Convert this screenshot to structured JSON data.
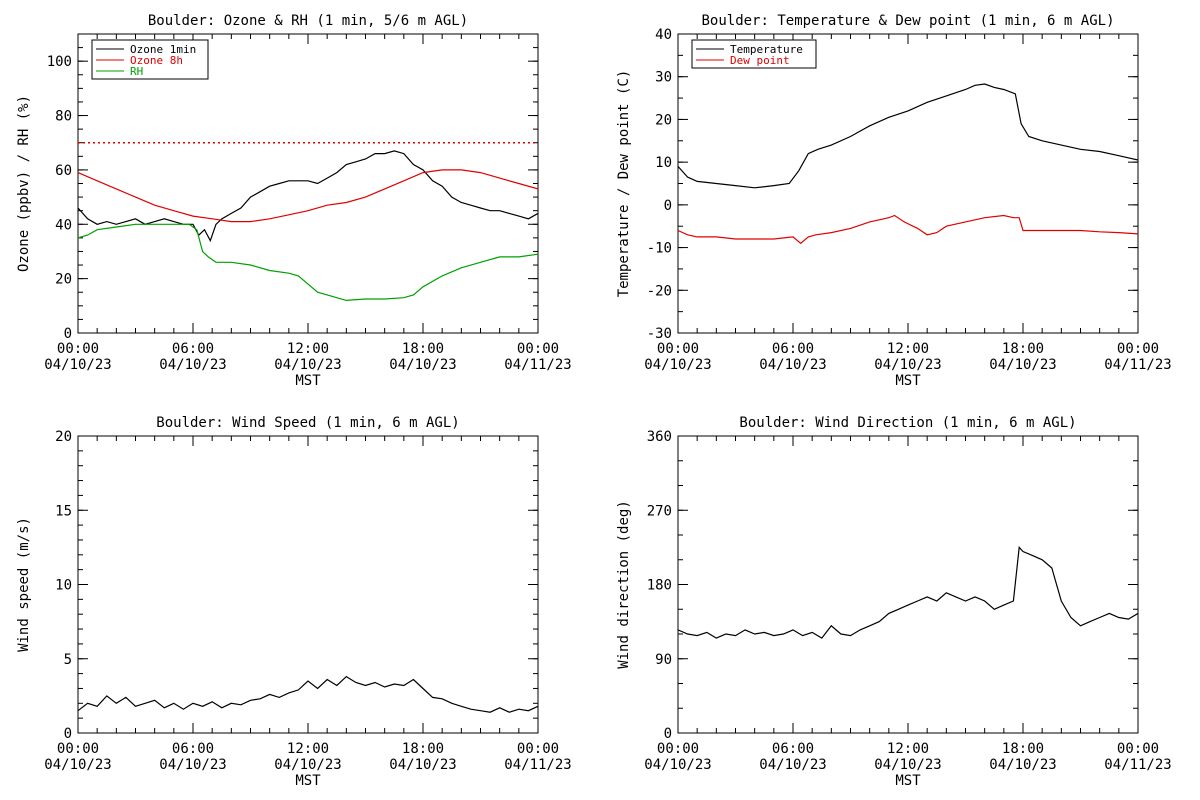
{
  "x_ticks": [
    {
      "time": "00:00",
      "date": "04/10/23"
    },
    {
      "time": "06:00",
      "date": "04/10/23"
    },
    {
      "time": "12:00",
      "date": "04/10/23"
    },
    {
      "time": "18:00",
      "date": "04/10/23"
    },
    {
      "time": "00:00",
      "date": "04/11/23"
    }
  ],
  "xlabel": "MST",
  "chart_data": [
    {
      "type": "line",
      "title": "Boulder: Ozone & RH (1 min, 5/6 m AGL)",
      "xlabel": "MST",
      "ylabel": "Ozone (ppbv) / RH (%)",
      "xlim_hours": [
        0,
        24
      ],
      "ylim": [
        0,
        110
      ],
      "yticks": [
        0,
        20,
        40,
        60,
        80,
        100
      ],
      "legend_position": "top-left",
      "reference_line": {
        "value": 70,
        "color": "#e00000",
        "style": "dotted"
      },
      "series": [
        {
          "name": "Ozone 1min",
          "color": "#000000",
          "x": [
            0,
            0.5,
            1,
            1.5,
            2,
            2.5,
            3,
            3.5,
            4,
            4.5,
            5,
            5.5,
            6,
            6.3,
            6.6,
            6.9,
            7.2,
            7.5,
            8,
            8.5,
            9,
            9.5,
            10,
            10.5,
            11,
            11.5,
            12,
            12.5,
            13,
            13.5,
            14,
            14.5,
            15,
            15.5,
            16,
            16.5,
            17,
            17.5,
            18,
            18.5,
            19,
            19.5,
            20,
            20.5,
            21,
            21.5,
            22,
            22.5,
            23,
            23.5,
            24
          ],
          "y": [
            46,
            42,
            40,
            41,
            40,
            41,
            42,
            40,
            41,
            42,
            41,
            40,
            40,
            36,
            38,
            34,
            40,
            42,
            44,
            46,
            50,
            52,
            54,
            55,
            56,
            56,
            56,
            55,
            57,
            59,
            62,
            63,
            64,
            66,
            66,
            67,
            66,
            62,
            60,
            56,
            54,
            50,
            48,
            47,
            46,
            45,
            45,
            44,
            43,
            42,
            44
          ]
        },
        {
          "name": "Ozone 8h",
          "color": "#e00000",
          "x": [
            0,
            1,
            2,
            3,
            4,
            5,
            6,
            7,
            8,
            9,
            10,
            11,
            12,
            13,
            14,
            15,
            16,
            17,
            18,
            19,
            20,
            21,
            22,
            23,
            24
          ],
          "y": [
            59,
            56,
            53,
            50,
            47,
            45,
            43,
            42,
            41,
            41,
            42,
            43.5,
            45,
            47,
            48,
            50,
            53,
            56,
            59,
            60,
            60,
            59,
            57,
            55,
            53
          ]
        },
        {
          "name": "RH",
          "color": "#00a000",
          "x": [
            0,
            0.5,
            1,
            2,
            3,
            4,
            5,
            5.8,
            6.2,
            6.5,
            6.8,
            7.2,
            8,
            9,
            10,
            11,
            11.5,
            12,
            12.5,
            13,
            13.5,
            14,
            15,
            16,
            17,
            17.5,
            18,
            19,
            20,
            21,
            22,
            23,
            24
          ],
          "y": [
            35,
            36,
            38,
            39,
            40,
            40,
            40,
            40,
            38,
            30,
            28,
            26,
            26,
            25,
            23,
            22,
            21,
            18,
            15,
            14,
            13,
            12,
            12.5,
            12.5,
            13,
            14,
            17,
            21,
            24,
            26,
            28,
            28,
            29
          ]
        }
      ]
    },
    {
      "type": "line",
      "title": "Boulder: Temperature & Dew point (1 min, 6 m AGL)",
      "xlabel": "MST",
      "ylabel": "Temperature / Dew point (C)",
      "xlim_hours": [
        0,
        24
      ],
      "ylim": [
        -30,
        40
      ],
      "yticks": [
        -30,
        -20,
        -10,
        0,
        10,
        20,
        30,
        40
      ],
      "legend_position": "top-left",
      "series": [
        {
          "name": "Temperature",
          "color": "#000000",
          "x": [
            0,
            0.5,
            1,
            2,
            3,
            4,
            5,
            5.8,
            6.3,
            6.8,
            7.3,
            8,
            9,
            10,
            11,
            12,
            13,
            14,
            15,
            15.5,
            16,
            16.5,
            17,
            17.6,
            17.9,
            18.3,
            19,
            20,
            21,
            22,
            23,
            24
          ],
          "y": [
            9,
            6.5,
            5.5,
            5,
            4.5,
            4,
            4.5,
            5,
            8,
            12,
            13,
            14,
            16,
            18.5,
            20.5,
            22,
            24,
            25.5,
            27,
            28,
            28.3,
            27.5,
            27,
            26,
            19,
            16,
            15,
            14,
            13,
            12.5,
            11.5,
            10.5
          ]
        },
        {
          "name": "Dew point",
          "color": "#e00000",
          "x": [
            0,
            0.5,
            1,
            2,
            3,
            4,
            5,
            6,
            6.4,
            6.8,
            7.2,
            8,
            9,
            10,
            11,
            11.3,
            11.8,
            12.5,
            13,
            13.5,
            14,
            15,
            16,
            17,
            17.5,
            17.8,
            18,
            19,
            20,
            21,
            22,
            23,
            24
          ],
          "y": [
            -6,
            -7,
            -7.5,
            -7.5,
            -8,
            -8,
            -8,
            -7.5,
            -9,
            -7.5,
            -7,
            -6.5,
            -5.5,
            -4,
            -3,
            -2.5,
            -4,
            -5.5,
            -7,
            -6.5,
            -5,
            -4,
            -3,
            -2.5,
            -3,
            -3,
            -6,
            -6,
            -6,
            -6,
            -6.3,
            -6.5,
            -6.8
          ]
        }
      ]
    },
    {
      "type": "line",
      "title": "Boulder: Wind Speed (1 min, 6 m AGL)",
      "xlabel": "MST",
      "ylabel": "Wind speed (m/s)",
      "xlim_hours": [
        0,
        24
      ],
      "ylim": [
        0,
        20
      ],
      "yticks": [
        0,
        5,
        10,
        15,
        20
      ],
      "series": [
        {
          "color": "#000000",
          "x": [
            0,
            0.5,
            1,
            1.5,
            2,
            2.5,
            3,
            3.5,
            4,
            4.5,
            5,
            5.5,
            6,
            6.5,
            7,
            7.5,
            8,
            8.5,
            9,
            9.5,
            10,
            10.5,
            11,
            11.5,
            12,
            12.5,
            13,
            13.5,
            14,
            14.5,
            15,
            15.5,
            16,
            16.5,
            17,
            17.5,
            18,
            18.5,
            19,
            19.5,
            20,
            20.5,
            21,
            21.5,
            22,
            22.5,
            23,
            23.5,
            24
          ],
          "y": [
            1.5,
            2,
            1.8,
            2.5,
            2,
            2.4,
            1.8,
            2,
            2.2,
            1.7,
            2,
            1.6,
            2,
            1.8,
            2.1,
            1.7,
            2,
            1.9,
            2.2,
            2.3,
            2.6,
            2.4,
            2.7,
            2.9,
            3.5,
            3,
            3.6,
            3.2,
            3.8,
            3.4,
            3.2,
            3.4,
            3.1,
            3.3,
            3.2,
            3.6,
            3,
            2.4,
            2.3,
            2,
            1.8,
            1.6,
            1.5,
            1.4,
            1.7,
            1.4,
            1.6,
            1.5,
            1.8
          ]
        }
      ]
    },
    {
      "type": "line",
      "title": "Boulder: Wind Direction (1 min, 6 m AGL)",
      "xlabel": "MST",
      "ylabel": "Wind direction (deg)",
      "xlim_hours": [
        0,
        24
      ],
      "ylim": [
        0,
        360
      ],
      "yticks": [
        0,
        90,
        180,
        270,
        360
      ],
      "series": [
        {
          "color": "#000000",
          "x": [
            0,
            0.5,
            1,
            1.5,
            2,
            2.5,
            3,
            3.5,
            4,
            4.5,
            5,
            5.5,
            6,
            6.5,
            7,
            7.5,
            8,
            8.5,
            9,
            9.5,
            10,
            10.5,
            11,
            11.5,
            12,
            12.5,
            13,
            13.5,
            14,
            14.5,
            15,
            15.5,
            16,
            16.5,
            17,
            17.5,
            17.8,
            18,
            18.5,
            19,
            19.5,
            20,
            20.5,
            21,
            21.5,
            22,
            22.5,
            23,
            23.5,
            24
          ],
          "y": [
            125,
            120,
            118,
            122,
            115,
            120,
            118,
            125,
            120,
            122,
            118,
            120,
            125,
            118,
            122,
            115,
            130,
            120,
            118,
            125,
            130,
            135,
            145,
            150,
            155,
            160,
            165,
            160,
            170,
            165,
            160,
            165,
            160,
            150,
            155,
            160,
            225,
            220,
            215,
            210,
            200,
            160,
            140,
            130,
            135,
            140,
            145,
            140,
            138,
            145
          ]
        }
      ]
    }
  ]
}
